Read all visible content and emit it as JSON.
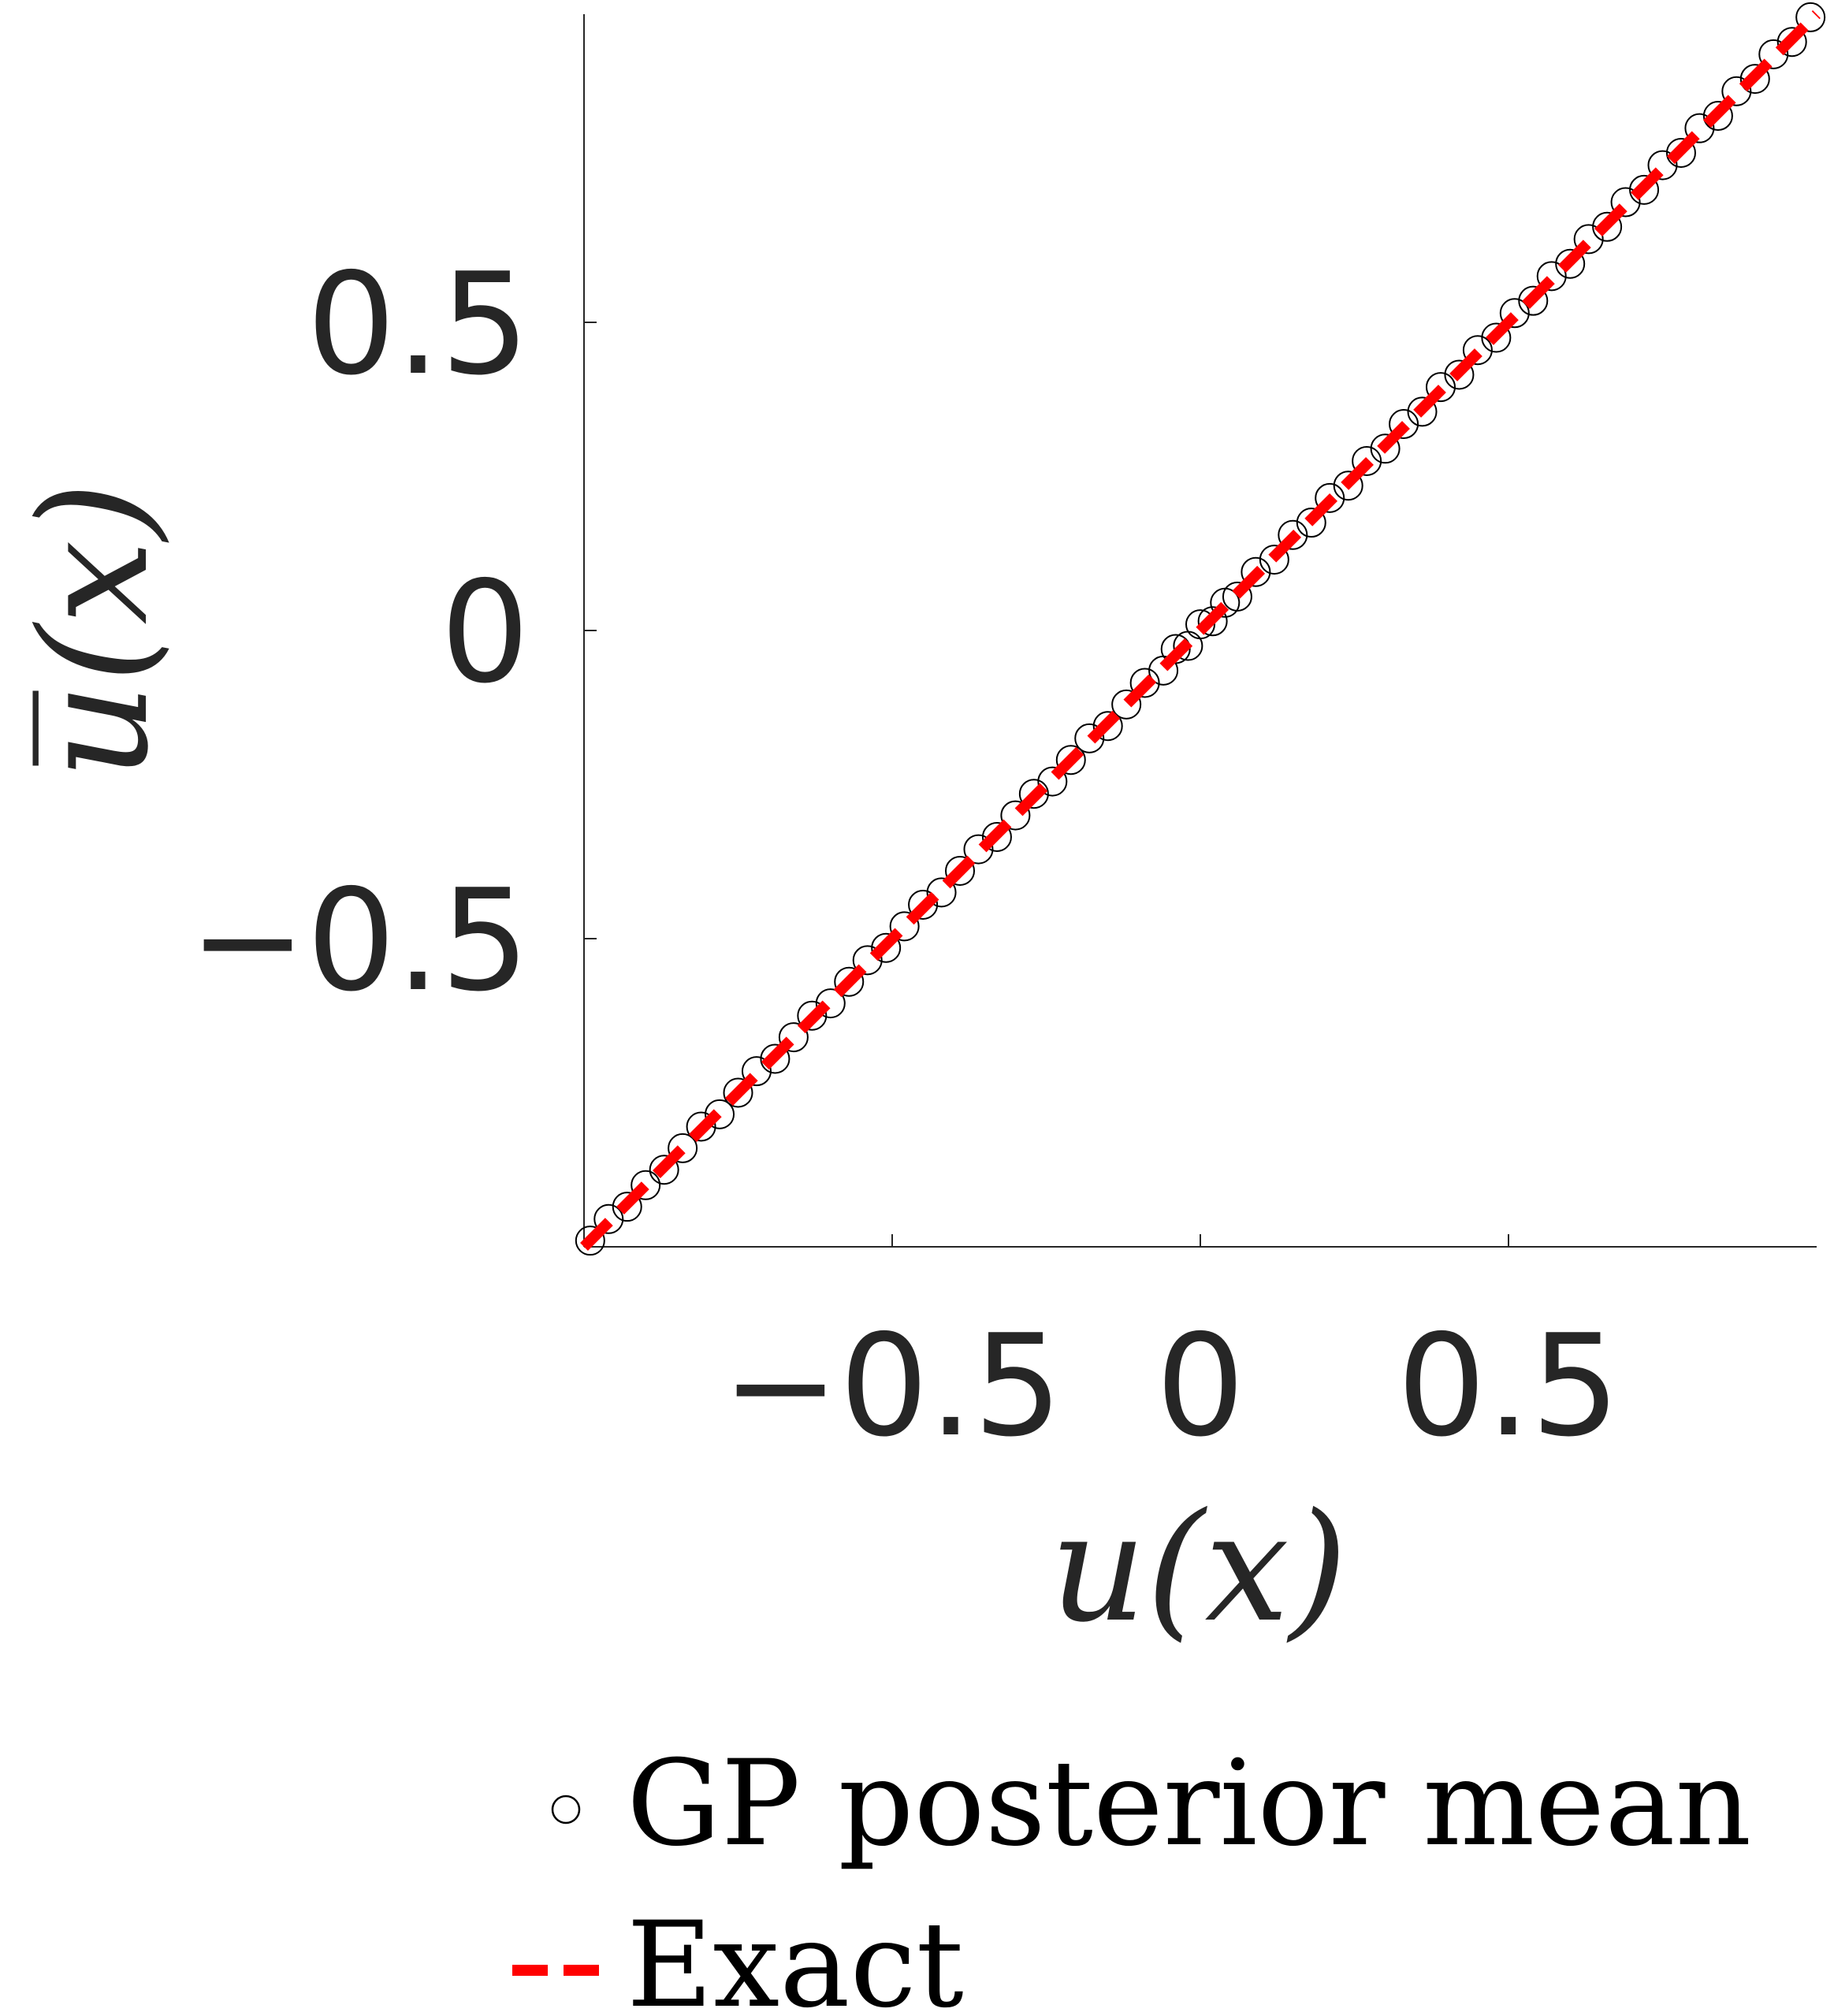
{
  "chart_data": {
    "type": "scatter",
    "xlabel": "u(x)",
    "ylabel": "u̅(x)",
    "xlim": [
      -1,
      1
    ],
    "ylim": [
      -1,
      1
    ],
    "xticks": [
      -0.5,
      0,
      0.5
    ],
    "xtick_labels": [
      "−0.5",
      "0",
      "0.5"
    ],
    "yticks": [
      -0.5,
      0,
      0.5
    ],
    "ytick_labels": [
      "−0.5",
      "0",
      "0.5"
    ],
    "grid": false,
    "legend_position": "bottom",
    "series": [
      {
        "name": "GP posterior mean",
        "kind": "scatter",
        "marker": "open-circle",
        "color": "#000000",
        "x": [
          -0.99,
          -0.96,
          -0.93,
          -0.9,
          -0.87,
          -0.84,
          -0.81,
          -0.78,
          -0.75,
          -0.72,
          -0.69,
          -0.66,
          -0.63,
          -0.6,
          -0.57,
          -0.54,
          -0.51,
          -0.48,
          -0.45,
          -0.42,
          -0.39,
          -0.36,
          -0.33,
          -0.3,
          -0.27,
          -0.24,
          -0.21,
          -0.18,
          -0.15,
          -0.12,
          -0.09,
          -0.06,
          -0.04,
          -0.02,
          0.0,
          0.02,
          0.04,
          0.06,
          0.09,
          0.12,
          0.15,
          0.18,
          0.21,
          0.24,
          0.27,
          0.3,
          0.33,
          0.36,
          0.39,
          0.42,
          0.45,
          0.48,
          0.51,
          0.54,
          0.57,
          0.6,
          0.63,
          0.66,
          0.69,
          0.72,
          0.75,
          0.78,
          0.81,
          0.84,
          0.87,
          0.9,
          0.93,
          0.96,
          0.99
        ],
        "y": [
          -0.99,
          -0.955,
          -0.935,
          -0.9,
          -0.875,
          -0.84,
          -0.805,
          -0.785,
          -0.75,
          -0.715,
          -0.695,
          -0.66,
          -0.625,
          -0.605,
          -0.57,
          -0.535,
          -0.515,
          -0.48,
          -0.445,
          -0.425,
          -0.39,
          -0.355,
          -0.335,
          -0.3,
          -0.265,
          -0.245,
          -0.21,
          -0.175,
          -0.155,
          -0.12,
          -0.085,
          -0.065,
          -0.03,
          -0.025,
          0.01,
          0.015,
          0.045,
          0.055,
          0.095,
          0.115,
          0.155,
          0.175,
          0.215,
          0.235,
          0.275,
          0.295,
          0.335,
          0.355,
          0.395,
          0.415,
          0.455,
          0.475,
          0.515,
          0.535,
          0.575,
          0.595,
          0.635,
          0.655,
          0.695,
          0.715,
          0.755,
          0.775,
          0.815,
          0.835,
          0.875,
          0.895,
          0.935,
          0.955,
          0.995
        ]
      },
      {
        "name": "Exact",
        "kind": "line",
        "style": "dashed",
        "color": "#ff0000",
        "x": [
          -1,
          1
        ],
        "y": [
          -1,
          1
        ]
      }
    ]
  }
}
